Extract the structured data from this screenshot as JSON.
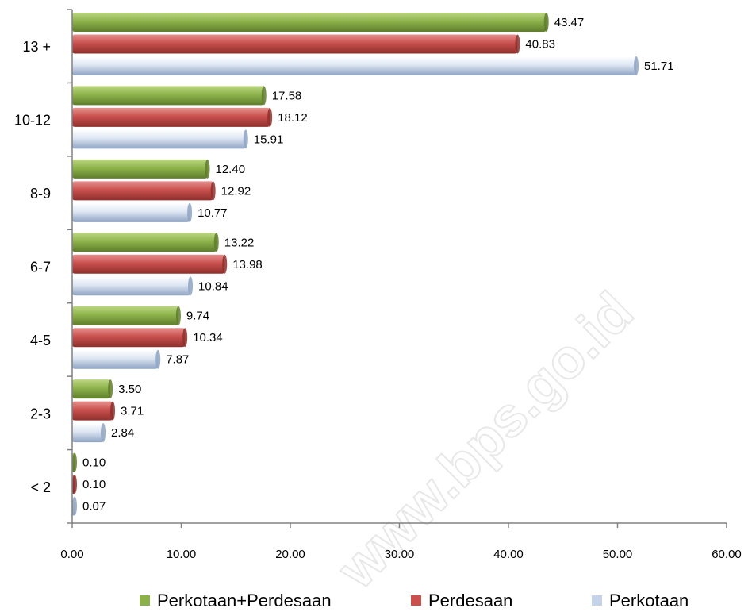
{
  "chart_data": {
    "type": "bar",
    "orientation": "horizontal",
    "categories": [
      "13 +",
      "10-12",
      "8-9",
      "6-7",
      "4-5",
      "2-3",
      "< 2"
    ],
    "series": [
      {
        "name": "Perkotaan+Perdesaan",
        "color": "#8cb04a",
        "values": [
          43.47,
          17.58,
          12.4,
          13.22,
          9.74,
          3.5,
          0.1
        ],
        "labels": [
          "43.47",
          "17.58",
          "12.40",
          "13.22",
          "9.74",
          "3.50",
          "0.10"
        ]
      },
      {
        "name": "Perdesaan",
        "color": "#c9504d",
        "values": [
          40.83,
          18.12,
          12.92,
          13.98,
          10.34,
          3.71,
          0.1
        ],
        "labels": [
          "40.83",
          "18.12",
          "12.92",
          "13.98",
          "10.34",
          "3.71",
          "0.10"
        ]
      },
      {
        "name": "Perkotaan",
        "color": "#c5d3e9",
        "values": [
          51.71,
          15.91,
          10.77,
          10.84,
          7.87,
          2.84,
          0.07
        ],
        "labels": [
          "51.71",
          "15.91",
          "10.77",
          "10.84",
          "7.87",
          "2.84",
          "0.07"
        ]
      }
    ],
    "xlim": [
      0,
      60
    ],
    "xticks": [
      "0.00",
      "10.00",
      "20.00",
      "30.00",
      "40.00",
      "50.00",
      "60.00"
    ],
    "grid": false,
    "legend_position": "bottom"
  },
  "watermark": "www.bps.go.id"
}
